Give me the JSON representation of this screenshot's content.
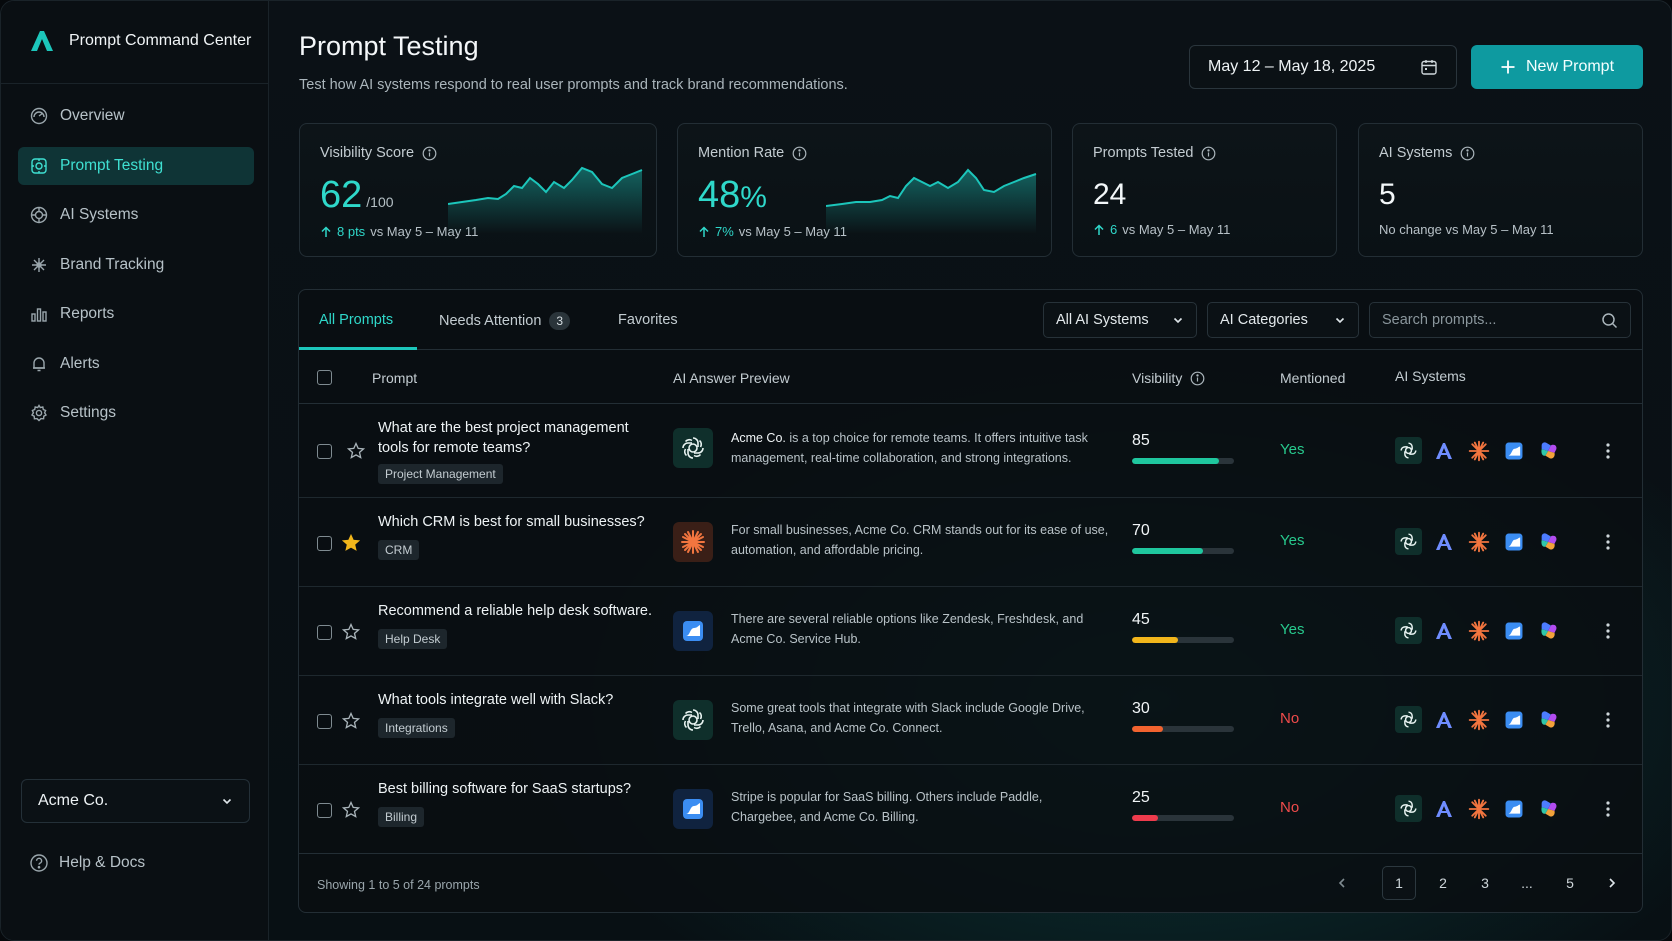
{
  "brand": {
    "name": "Prompt Command Center",
    "accent": "#1cc6bb"
  },
  "sidebar": {
    "items": [
      {
        "label": "Overview",
        "icon": "overview-icon"
      },
      {
        "label": "Prompt Testing",
        "icon": "prompt-testing-icon",
        "active": true
      },
      {
        "label": "AI Systems",
        "icon": "ai-systems-icon"
      },
      {
        "label": "Brand Tracking",
        "icon": "brand-tracking-icon"
      },
      {
        "label": "Reports",
        "icon": "reports-icon"
      },
      {
        "label": "Alerts",
        "icon": "bell-icon"
      },
      {
        "label": "Settings",
        "icon": "gear-icon"
      }
    ],
    "org": "Acme Co.",
    "help": "Help & Docs"
  },
  "header": {
    "title": "Prompt Testing",
    "subtitle": "Test how AI systems respond to real user prompts and track brand recommendations.",
    "date_range": "May 12 – May 18, 2025",
    "new_prompt": "New Prompt"
  },
  "kpis": {
    "visibility": {
      "label": "Visibility Score",
      "value": "62",
      "suffix": "/100",
      "delta": "8 pts",
      "compare": "vs May 5 – May 11"
    },
    "mention": {
      "label": "Mention Rate",
      "value": "48",
      "suffix": "%",
      "delta": "7%",
      "compare": "vs May 5 – May 11"
    },
    "prompts": {
      "label": "Prompts Tested",
      "value": "24",
      "delta": "6",
      "compare": "vs May 5 – May 11"
    },
    "systems": {
      "label": "AI Systems",
      "value": "5",
      "compare": "No change vs May 5 – May 11"
    }
  },
  "tabs": {
    "all": "All Prompts",
    "attention": "Needs Attention",
    "attention_count": "3",
    "favorites": "Favorites"
  },
  "filters": {
    "systems": "All AI Systems",
    "categories": "AI Categories",
    "search_placeholder": "Search prompts..."
  },
  "columns": {
    "prompt": "Prompt",
    "preview": "AI Answer Preview",
    "visibility": "Visibility",
    "mentioned": "Mentioned",
    "systems": "AI Systems"
  },
  "rows": [
    {
      "prompt": "What are the best project management tools for remote teams?",
      "category": "Project Management",
      "ai": "openai-icon",
      "answer_brand": "Acme Co.",
      "answer": " is a top choice for remote teams. It offers intuitive task management, real-time collaboration, and strong integrations.",
      "visibility": "85",
      "visibility_fraction": 0.85,
      "mentioned": "Yes",
      "favorite": false
    },
    {
      "prompt": "Which CRM is best for small businesses?",
      "category": "CRM",
      "ai": "sparkle-icon",
      "answer_brand": "",
      "answer": "For small businesses, Acme Co. CRM stands out for its ease of use, automation, and affordable pricing.",
      "visibility": "70",
      "visibility_fraction": 0.7,
      "mentioned": "Yes",
      "favorite": true
    },
    {
      "prompt": "Recommend a reliable help desk software.",
      "category": "Help Desk",
      "ai": "wave-icon",
      "answer_brand": "",
      "answer": "There are several reliable options like Zendesk, Freshdesk, and Acme Co. Service Hub.",
      "visibility": "45",
      "visibility_fraction": 0.45,
      "mentioned": "Yes",
      "favorite": false
    },
    {
      "prompt": "What tools integrate well with Slack?",
      "category": "Integrations",
      "ai": "openai-icon",
      "answer_brand": "",
      "answer": "Some great tools that integrate with Slack include Google Drive, Trello, Asana, and Acme Co. Connect.",
      "visibility": "30",
      "visibility_fraction": 0.3,
      "mentioned": "No",
      "favorite": false
    },
    {
      "prompt": "Best billing software for SaaS startups?",
      "category": "Billing",
      "ai": "wave-icon",
      "answer_brand": "",
      "answer": "Stripe is popular for SaaS billing. Others include Paddle, Chargebee, and Acme Co. Billing.",
      "visibility": "25",
      "visibility_fraction": 0.25,
      "mentioned": "No",
      "favorite": false
    }
  ],
  "footer": {
    "showing": "Showing 1 to 5 of 24 prompts",
    "pages": [
      "1",
      "2",
      "3",
      "...",
      "5"
    ]
  },
  "colors": {
    "teal": "#2fd8ca",
    "green_bar": "#1fc79e",
    "yellow_bar": "#f2b61b",
    "orange_bar": "#f2632f",
    "red_bar": "#ee3b4c",
    "yes": "#27c98d",
    "no": "#ef4b4b"
  }
}
